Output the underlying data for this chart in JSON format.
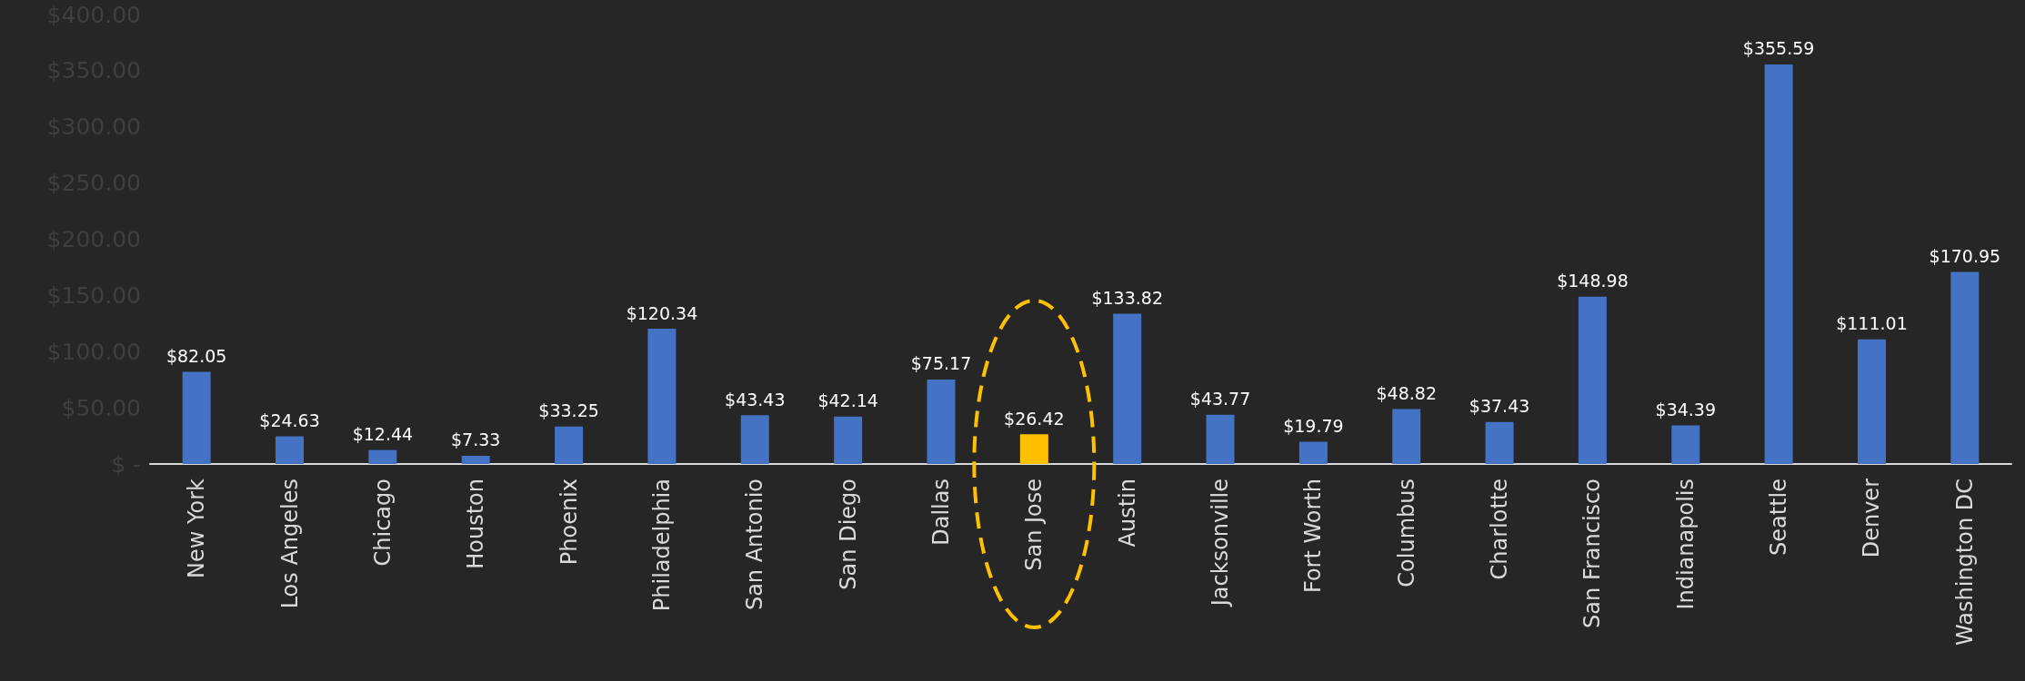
{
  "chart_data": {
    "type": "bar",
    "categories": [
      "New York",
      "Los Angeles",
      "Chicago",
      "Houston",
      "Phoenix",
      "Philadelphia",
      "San Antonio",
      "San Diego",
      "Dallas",
      "San Jose",
      "Austin",
      "Jacksonville",
      "Fort Worth",
      "Columbus",
      "Charlotte",
      "San Francisco",
      "Indianapolis",
      "Seattle",
      "Denver",
      "Washington DC"
    ],
    "values": [
      82.05,
      24.63,
      12.44,
      7.33,
      33.25,
      120.34,
      43.43,
      42.14,
      75.17,
      26.42,
      133.82,
      43.77,
      19.79,
      48.82,
      37.43,
      148.98,
      34.39,
      355.59,
      111.01,
      170.95
    ],
    "value_labels": [
      "$82.05",
      "$24.63",
      "$12.44",
      "$7.33",
      "$33.25",
      "$120.34",
      "$43.43",
      "$42.14",
      "$75.17",
      "$26.42",
      "$133.82",
      "$43.77",
      "$19.79",
      "$48.82",
      "$37.43",
      "$148.98",
      "$34.39",
      "$355.59",
      "$111.01",
      "$170.95"
    ],
    "colors": [
      "#4472c4",
      "#4472c4",
      "#4472c4",
      "#4472c4",
      "#4472c4",
      "#4472c4",
      "#4472c4",
      "#4472c4",
      "#4472c4",
      "#ffc000",
      "#4472c4",
      "#4472c4",
      "#4472c4",
      "#4472c4",
      "#4472c4",
      "#4472c4",
      "#4472c4",
      "#4472c4",
      "#4472c4",
      "#4472c4"
    ],
    "ylim": [
      0,
      400
    ],
    "yticks": [
      {
        "value": 0,
        "label": "$ -"
      },
      {
        "value": 50,
        "label": "$50.00"
      },
      {
        "value": 100,
        "label": "$100.00"
      },
      {
        "value": 150,
        "label": "$150.00"
      },
      {
        "value": 200,
        "label": "$200.00"
      },
      {
        "value": 250,
        "label": "$250.00"
      },
      {
        "value": 300,
        "label": "$300.00"
      },
      {
        "value": 350,
        "label": "$350.00"
      },
      {
        "value": 400,
        "label": "$400.00"
      }
    ],
    "grid": false
  }
}
